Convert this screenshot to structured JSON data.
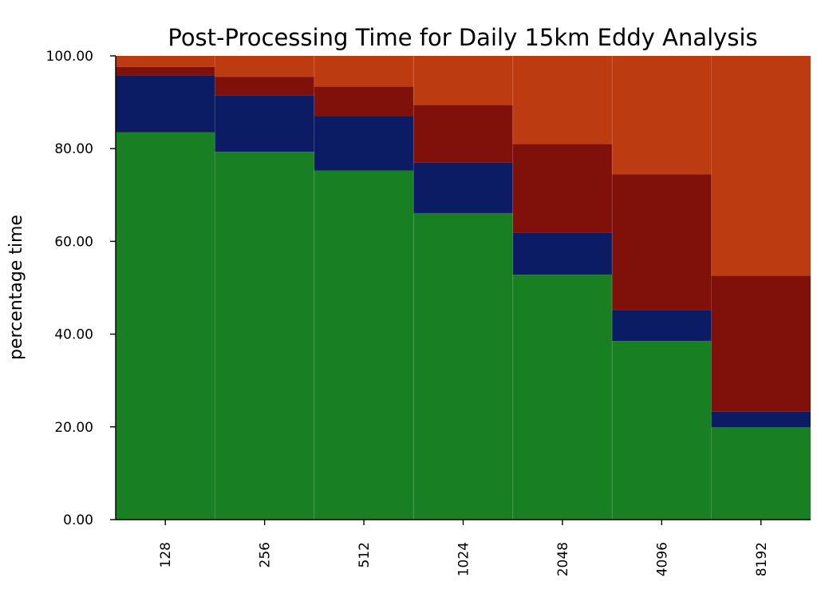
{
  "chart_data": {
    "type": "bar",
    "stacked": true,
    "title": "Post-Processing Time for Daily 15km Eddy Analysis",
    "xlabel": "",
    "ylabel": "percentage time",
    "ylim": [
      0,
      100
    ],
    "yticks": [
      "0.00",
      "20.00",
      "40.00",
      "60.00",
      "80.00",
      "100.00"
    ],
    "categories": [
      "128",
      "256",
      "512",
      "1024",
      "2048",
      "4096",
      "8192"
    ],
    "grid": false,
    "series": [
      {
        "color": "#187f23",
        "values": [
          83.5,
          79.3,
          75.3,
          66.1,
          52.8,
          38.5,
          19.9
        ]
      },
      {
        "color": "#0b1c64",
        "values": [
          12.3,
          12.2,
          11.7,
          10.9,
          9.0,
          6.7,
          3.4
        ]
      },
      {
        "color": "#80100a",
        "values": [
          1.8,
          4.0,
          6.4,
          12.4,
          19.2,
          29.3,
          29.3
        ]
      },
      {
        "color": "#bd3b11",
        "values": [
          2.4,
          4.5,
          6.6,
          10.6,
          19.0,
          25.5,
          47.4
        ]
      }
    ]
  }
}
